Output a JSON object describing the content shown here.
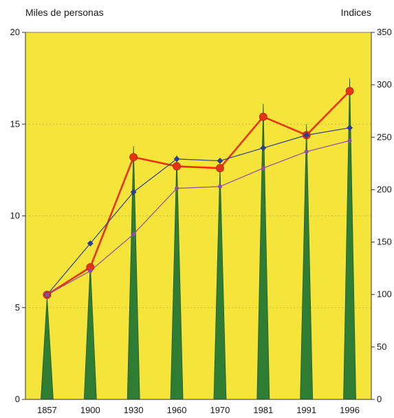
{
  "chart_data": {
    "type": "bar",
    "title": "",
    "ylabel": "Miles de personas",
    "y2label": "Indices",
    "categories": [
      "1857",
      "1900",
      "1930",
      "1960",
      "1970",
      "1981",
      "1991",
      "1996"
    ],
    "ylim": [
      0,
      20
    ],
    "y2lim": [
      0,
      350
    ],
    "yticks": [
      "0",
      "5",
      "10",
      "15",
      "20"
    ],
    "y2ticks": [
      "0",
      "50",
      "100",
      "150",
      "200",
      "250",
      "300",
      "350"
    ],
    "grid": true,
    "background_color": "#f5e43a",
    "series": [
      {
        "type": "bar",
        "axis": "left",
        "color": "#2f7d32",
        "values": [
          5.6,
          7.4,
          13.8,
          13.3,
          12.7,
          16.1,
          15.0,
          17.5
        ]
      },
      {
        "type": "line",
        "axis": "left",
        "color": "#e63312",
        "values": [
          5.7,
          7.2,
          13.2,
          12.7,
          12.6,
          15.4,
          14.4,
          16.8
        ]
      },
      {
        "type": "line",
        "axis": "left",
        "color": "#2a3f8f",
        "values": [
          5.7,
          8.5,
          11.3,
          13.1,
          13.0,
          13.7,
          14.4,
          14.8
        ]
      },
      {
        "type": "line",
        "axis": "left",
        "color": "#8a4fa8",
        "values": [
          5.7,
          7.0,
          9.0,
          11.5,
          11.6,
          12.6,
          13.5,
          14.1
        ]
      }
    ]
  }
}
